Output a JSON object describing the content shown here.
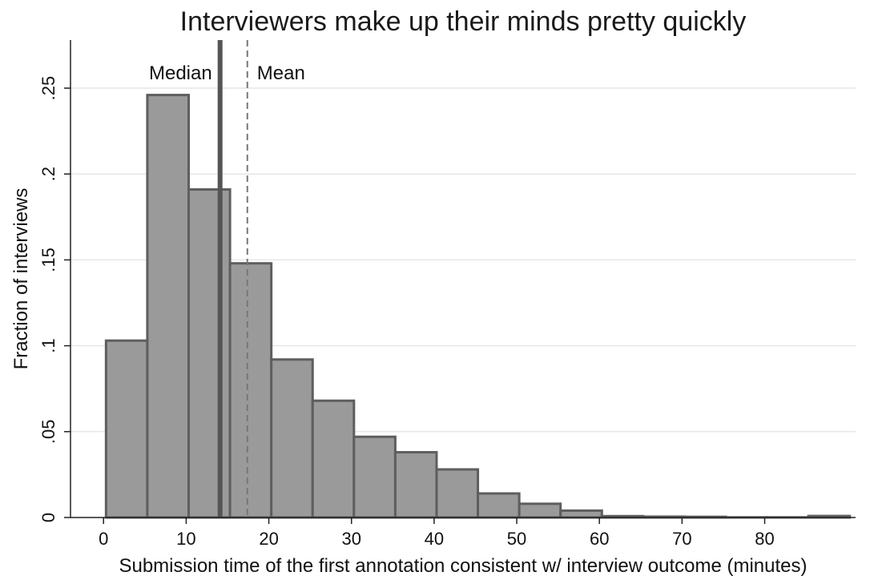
{
  "chart_data": {
    "type": "bar",
    "title": "Interviewers make up their minds pretty quickly",
    "xlabel": "Submission time of the first annotation consistent w/ interview outcome (minutes)",
    "ylabel": "Fraction of interviews",
    "xlim": [
      -4,
      91
    ],
    "ylim": [
      0,
      0.278
    ],
    "bin_width": 5,
    "xticks": [
      0,
      10,
      20,
      30,
      40,
      50,
      60,
      70,
      80
    ],
    "yticks": [
      0,
      0.05,
      0.1,
      0.15,
      0.2,
      0.25
    ],
    "ytick_labels": [
      "0",
      ".05",
      ".1",
      ".15",
      ".2",
      ".25"
    ],
    "grid": true,
    "bins": [
      {
        "x0": 0.3,
        "value": 0.103
      },
      {
        "x0": 5.3,
        "value": 0.246
      },
      {
        "x0": 10.3,
        "value": 0.191
      },
      {
        "x0": 15.3,
        "value": 0.148
      },
      {
        "x0": 20.3,
        "value": 0.092
      },
      {
        "x0": 25.3,
        "value": 0.068
      },
      {
        "x0": 30.3,
        "value": 0.047
      },
      {
        "x0": 35.3,
        "value": 0.038
      },
      {
        "x0": 40.3,
        "value": 0.028
      },
      {
        "x0": 45.3,
        "value": 0.014
      },
      {
        "x0": 50.3,
        "value": 0.008
      },
      {
        "x0": 55.3,
        "value": 0.004
      },
      {
        "x0": 60.3,
        "value": 0.0008
      },
      {
        "x0": 65.3,
        "value": 0.0005
      },
      {
        "x0": 70.3,
        "value": 0.0004
      },
      {
        "x0": 75.3,
        "value": 0.0001
      },
      {
        "x0": 80.3,
        "value": 0.0001
      },
      {
        "x0": 85.3,
        "value": 0.0009
      }
    ],
    "reference_lines": [
      {
        "name": "Median",
        "x": 14.1,
        "style": "solid",
        "color": "#555555"
      },
      {
        "name": "Mean",
        "x": 17.4,
        "style": "dashed",
        "color": "#777777"
      }
    ]
  }
}
